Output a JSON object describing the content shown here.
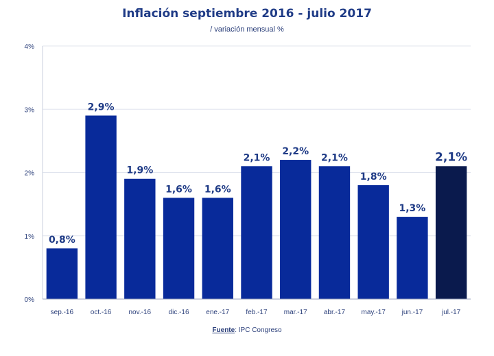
{
  "title": "Inflación septiembre 2016 - julio 2017",
  "subtitle": "/ variación mensual %",
  "source": {
    "label": "Fuente",
    "text": ": IPC Congreso"
  },
  "colors": {
    "bar": "#082a9a",
    "highlight": "#0a1a4d",
    "text": "#1f3b86",
    "grid": "#e0e4ee"
  },
  "chart_data": {
    "type": "bar",
    "categories": [
      "sep.-16",
      "oct.-16",
      "nov.-16",
      "dic.-16",
      "ene.-17",
      "feb.-17",
      "mar.-17",
      "abr.-17",
      "may.-17",
      "jun.-17",
      "jul.-17"
    ],
    "values": [
      0.8,
      2.9,
      1.9,
      1.6,
      1.6,
      2.1,
      2.2,
      2.1,
      1.8,
      1.3,
      2.1
    ],
    "labels": [
      "0,8%",
      "2,9%",
      "1,9%",
      "1,6%",
      "1,6%",
      "2,1%",
      "2,2%",
      "2,1%",
      "1,8%",
      "1,3%",
      "2,1%"
    ],
    "highlight_index": 10,
    "title": "Inflación septiembre 2016 - julio 2017",
    "xlabel": "",
    "ylabel": "",
    "ylim": [
      0,
      4
    ],
    "yticks": [
      0,
      1,
      2,
      3,
      4
    ],
    "ytick_labels": [
      "0%",
      "1%",
      "2%",
      "3%",
      "4%"
    ],
    "grid": true,
    "legend": "none"
  }
}
